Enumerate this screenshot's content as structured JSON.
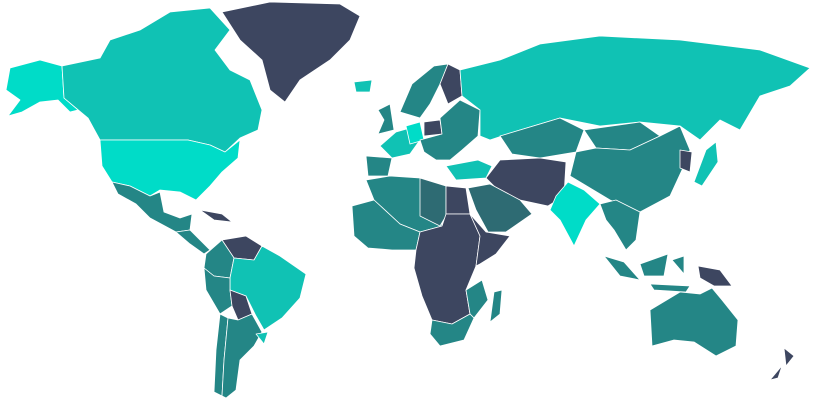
{
  "map": {
    "type": "choropleth-world",
    "legend": "none",
    "palette": {
      "bright": "#00dcc8",
      "teal": "#10c2b4",
      "mid": "#248686",
      "deep": "#2e6b73",
      "navy": "#3d4660"
    },
    "regions": [
      {
        "id": "alaska",
        "fill": "bright"
      },
      {
        "id": "canada",
        "fill": "teal"
      },
      {
        "id": "usa",
        "fill": "bright"
      },
      {
        "id": "greenland",
        "fill": "navy"
      },
      {
        "id": "mexico",
        "fill": "mid"
      },
      {
        "id": "central-america",
        "fill": "mid"
      },
      {
        "id": "caribbean",
        "fill": "navy"
      },
      {
        "id": "venezuela",
        "fill": "navy"
      },
      {
        "id": "colombia",
        "fill": "mid"
      },
      {
        "id": "brazil",
        "fill": "teal"
      },
      {
        "id": "peru",
        "fill": "mid"
      },
      {
        "id": "bolivia",
        "fill": "navy"
      },
      {
        "id": "argentina",
        "fill": "mid"
      },
      {
        "id": "chile",
        "fill": "mid"
      },
      {
        "id": "uruguay",
        "fill": "teal"
      },
      {
        "id": "iceland",
        "fill": "teal"
      },
      {
        "id": "uk",
        "fill": "mid"
      },
      {
        "id": "scandinavia",
        "fill": "mid"
      },
      {
        "id": "finland",
        "fill": "navy"
      },
      {
        "id": "western-europe",
        "fill": "teal"
      },
      {
        "id": "germany",
        "fill": "bright"
      },
      {
        "id": "poland",
        "fill": "navy"
      },
      {
        "id": "eastern-europe",
        "fill": "mid"
      },
      {
        "id": "iberia",
        "fill": "mid"
      },
      {
        "id": "russia",
        "fill": "teal"
      },
      {
        "id": "turkey",
        "fill": "teal"
      },
      {
        "id": "kazakhstan",
        "fill": "mid"
      },
      {
        "id": "middle-east",
        "fill": "navy"
      },
      {
        "id": "arabia",
        "fill": "deep"
      },
      {
        "id": "india",
        "fill": "bright"
      },
      {
        "id": "china",
        "fill": "mid"
      },
      {
        "id": "mongolia",
        "fill": "mid"
      },
      {
        "id": "southeast-asia",
        "fill": "mid"
      },
      {
        "id": "japan",
        "fill": "teal"
      },
      {
        "id": "korea",
        "fill": "navy"
      },
      {
        "id": "indonesia",
        "fill": "mid"
      },
      {
        "id": "png",
        "fill": "navy"
      },
      {
        "id": "australia",
        "fill": "mid"
      },
      {
        "id": "new-zealand",
        "fill": "navy"
      },
      {
        "id": "north-africa",
        "fill": "mid"
      },
      {
        "id": "libya",
        "fill": "deep"
      },
      {
        "id": "egypt",
        "fill": "navy"
      },
      {
        "id": "sub-saharan-africa",
        "fill": "navy"
      },
      {
        "id": "west-africa",
        "fill": "mid"
      },
      {
        "id": "east-africa",
        "fill": "navy"
      },
      {
        "id": "mozambique",
        "fill": "mid"
      },
      {
        "id": "south-africa",
        "fill": "mid"
      },
      {
        "id": "madagascar",
        "fill": "mid"
      }
    ]
  }
}
